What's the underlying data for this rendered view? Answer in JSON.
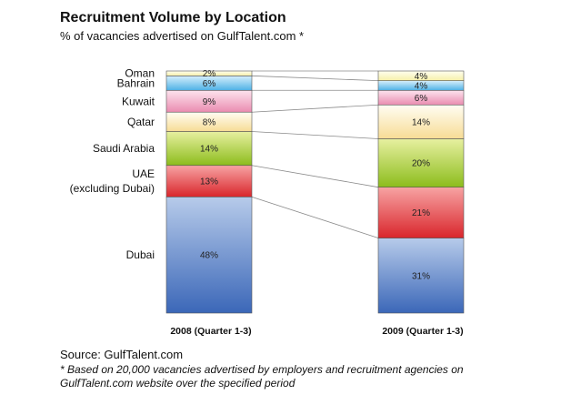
{
  "header": {
    "title": "Recruitment Volume by Location",
    "subtitle": "% of vacancies advertised on GulfTalent.com *"
  },
  "chart_data": {
    "type": "bar",
    "stacked": true,
    "title": "Recruitment Volume by Location",
    "subtitle": "% of vacancies advertised on GulfTalent.com *",
    "categories": [
      "2008 (Quarter 1-3)",
      "2009 (Quarter 1-3)"
    ],
    "series": [
      {
        "name": "Dubai",
        "label_lines": [
          "Dubai"
        ],
        "values": [
          48,
          31
        ],
        "value_labels": [
          "48%",
          "31%"
        ],
        "color_top": "#b7cbea",
        "color_bottom": "#3b67b8"
      },
      {
        "name": "UAE (excluding Dubai)",
        "label_lines": [
          "UAE",
          "(excluding Dubai)"
        ],
        "values": [
          13,
          21
        ],
        "value_labels": [
          "13%",
          "21%"
        ],
        "color_top": "#f7a3a3",
        "color_bottom": "#d9262c"
      },
      {
        "name": "Saudi Arabia",
        "label_lines": [
          "Saudi Arabia"
        ],
        "values": [
          14,
          20
        ],
        "value_labels": [
          "14%",
          "20%"
        ],
        "color_top": "#e7f0a0",
        "color_bottom": "#8cbc1c"
      },
      {
        "name": "Qatar",
        "label_lines": [
          "Qatar"
        ],
        "values": [
          8,
          14
        ],
        "value_labels": [
          "8%",
          "14%"
        ],
        "color_top": "#fffdf3",
        "color_bottom": "#f7dc95"
      },
      {
        "name": "Kuwait",
        "label_lines": [
          "Kuwait"
        ],
        "values": [
          9,
          6
        ],
        "value_labels": [
          "9%",
          "6%"
        ],
        "color_top": "#fde4ee",
        "color_bottom": "#ea8cb0"
      },
      {
        "name": "Bahrain",
        "label_lines": [
          "Bahrain"
        ],
        "values": [
          6,
          4
        ],
        "value_labels": [
          "6%",
          "4%"
        ],
        "color_top": "#d7effc",
        "color_bottom": "#4fb2e6"
      },
      {
        "name": "Oman",
        "label_lines": [
          "Oman"
        ],
        "values": [
          2,
          4
        ],
        "value_labels": [
          "2%",
          "4%"
        ],
        "color_top": "#fffef0",
        "color_bottom": "#f6f0a8"
      }
    ],
    "ylim": [
      0,
      100
    ],
    "connector_lines": true,
    "xlabel": "",
    "ylabel": ""
  },
  "footer": {
    "source": "Source: GulfTalent.com",
    "note": "* Based on 20,000 vacancies advertised by employers and recruitment agencies on GulfTalent.com website over the specified period"
  }
}
